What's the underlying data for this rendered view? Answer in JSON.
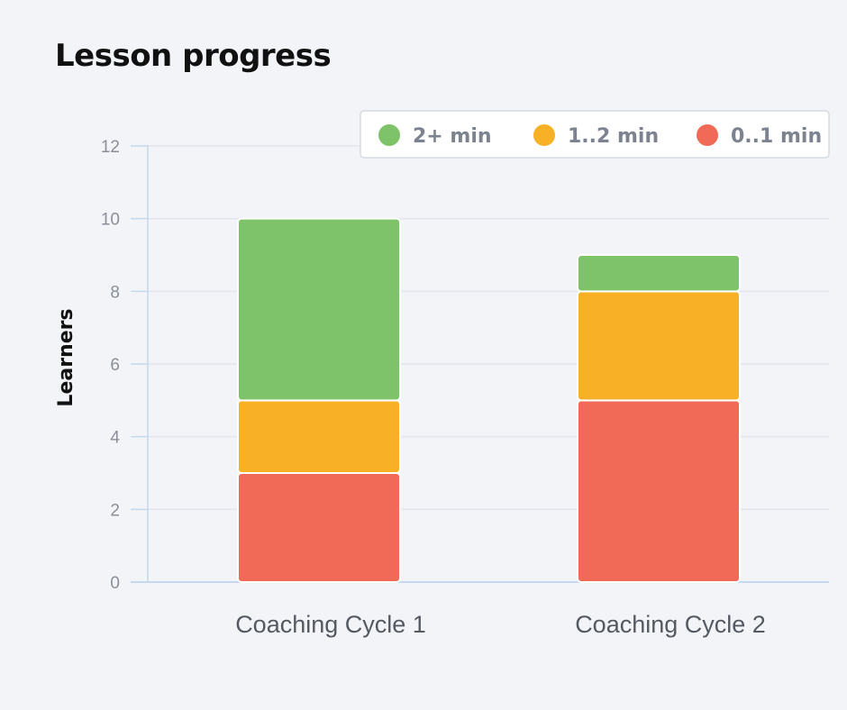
{
  "title": "Lesson progress",
  "colors": {
    "background": "#f3f4f8",
    "grid": "#e2e6ee",
    "axis": "#c5d8ee"
  },
  "chart_data": {
    "type": "bar",
    "stacked": true,
    "categories": [
      "Coaching Cycle 1",
      "Coaching Cycle 2"
    ],
    "series": [
      {
        "name": "0..1 min",
        "color": "#f06a57",
        "values": [
          3,
          5
        ]
      },
      {
        "name": "1..2 min",
        "color": "#f8b027",
        "values": [
          2,
          3
        ]
      },
      {
        "name": "2+ min",
        "color": "#7ec26a",
        "values": [
          5,
          1
        ]
      }
    ],
    "legend_order": [
      "2+ min",
      "1..2 min",
      "0..1 min"
    ],
    "legend_position": "top-right",
    "xlabel": "",
    "ylabel": "Learners",
    "ylim": [
      0,
      12
    ],
    "yticks": [
      0,
      2,
      4,
      6,
      8,
      10,
      12
    ],
    "grid": true
  }
}
